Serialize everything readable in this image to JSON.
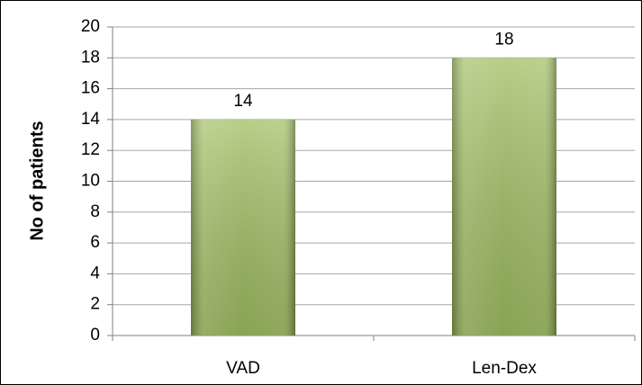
{
  "chart_data": {
    "type": "bar",
    "y_label": "No of patients",
    "categories": [
      "VAD",
      "Len-Dex"
    ],
    "values": [
      14,
      18
    ],
    "color": "#9bbb59",
    "ylim": [
      0,
      20
    ],
    "yticks": [
      0,
      2,
      4,
      6,
      8,
      10,
      12,
      14,
      16,
      18,
      20
    ],
    "grid": true
  }
}
